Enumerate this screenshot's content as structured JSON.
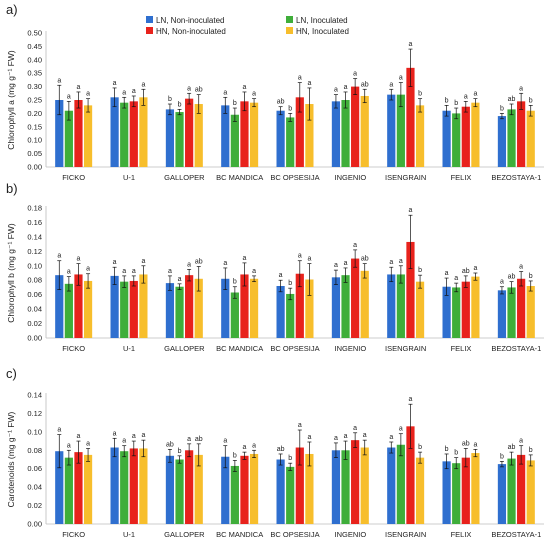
{
  "legend": [
    {
      "name": "LN, Non-inoculated",
      "color": "#2f6fcf"
    },
    {
      "name": "LN, Inoculated",
      "color": "#3fae3a"
    },
    {
      "name": "HN, Non-inoculated",
      "color": "#e8221c"
    },
    {
      "name": "HN, Inoculated",
      "color": "#f7be2c"
    }
  ],
  "chart_data": [
    {
      "type": "bar",
      "panel_label": "a)",
      "ylabel": "Chlorophyll a (mg g⁻¹ FW)",
      "ylim": [
        0,
        0.5
      ],
      "yticks": [
        "0.00",
        "0.05",
        "0.10",
        "0.15",
        "0.20",
        "0.25",
        "0.30",
        "0.35",
        "0.40",
        "0.45",
        "0.50"
      ],
      "ytick_values": [
        0,
        0.05,
        0.1,
        0.15,
        0.2,
        0.25,
        0.3,
        0.35,
        0.4,
        0.45,
        0.5
      ],
      "categories": [
        "FICKO",
        "U-1",
        "GALLOPER",
        "BC MANDICA",
        "BC OPSESIJA",
        "INGENIO",
        "ISENGRAIN",
        "FELIX",
        "BEZOSTAYA-1"
      ],
      "series": [
        {
          "name": "LN, Non-inoculated",
          "values": [
            0.25,
            0.26,
            0.215,
            0.23,
            0.21,
            0.245,
            0.27,
            0.21,
            0.19
          ],
          "errors": [
            0.055,
            0.035,
            0.02,
            0.03,
            0.015,
            0.025,
            0.02,
            0.02,
            0.01
          ],
          "labels": [
            "a",
            "a",
            "b",
            "a",
            "ab",
            "a",
            "a",
            "b",
            "b"
          ]
        },
        {
          "name": "LN, Inoculated",
          "values": [
            0.21,
            0.24,
            0.205,
            0.195,
            0.185,
            0.25,
            0.27,
            0.2,
            0.215
          ],
          "errors": [
            0.035,
            0.02,
            0.01,
            0.025,
            0.015,
            0.03,
            0.045,
            0.02,
            0.02
          ],
          "labels": [
            "a",
            "a",
            "b",
            "b",
            "b",
            "a",
            "a",
            "b",
            "ab"
          ]
        },
        {
          "name": "HN, Non-inoculated",
          "values": [
            0.25,
            0.245,
            0.255,
            0.245,
            0.26,
            0.3,
            0.37,
            0.225,
            0.245
          ],
          "errors": [
            0.03,
            0.02,
            0.02,
            0.035,
            0.055,
            0.03,
            0.07,
            0.02,
            0.03
          ],
          "labels": [
            "a",
            "a",
            "a",
            "a",
            "a",
            "a",
            "a",
            "a",
            "a"
          ]
        },
        {
          "name": "HN, Inoculated",
          "values": [
            0.23,
            0.26,
            0.235,
            0.24,
            0.235,
            0.265,
            0.23,
            0.24,
            0.21
          ],
          "errors": [
            0.025,
            0.03,
            0.035,
            0.015,
            0.06,
            0.025,
            0.025,
            0.015,
            0.02
          ],
          "labels": [
            "a",
            "a",
            "ab",
            "a",
            "a",
            "ab",
            "b",
            "a",
            "b"
          ]
        }
      ]
    },
    {
      "type": "bar",
      "panel_label": "b)",
      "ylabel": "Chlorophyll b (mg g⁻¹ FW)",
      "ylim": [
        0,
        0.18
      ],
      "yticks": [
        "0.00",
        "0.02",
        "0.04",
        "0.06",
        "0.08",
        "0.10",
        "0.12",
        "0.14",
        "0.16",
        "0.18"
      ],
      "ytick_values": [
        0,
        0.02,
        0.04,
        0.06,
        0.08,
        0.1,
        0.12,
        0.14,
        0.16,
        0.18
      ],
      "categories": [
        "FICKO",
        "U-1",
        "GALLOPER",
        "BC MANDICA",
        "BC OPSESIJA",
        "INGENIO",
        "ISENGRAIN",
        "FELIX",
        "BEZOSTAYA-1"
      ],
      "series": [
        {
          "name": "LN, Non-inoculated",
          "values": [
            0.087,
            0.086,
            0.076,
            0.082,
            0.072,
            0.084,
            0.088,
            0.071,
            0.066
          ],
          "errors": [
            0.02,
            0.012,
            0.01,
            0.015,
            0.008,
            0.01,
            0.01,
            0.012,
            0.005
          ],
          "labels": [
            "a",
            "a",
            "a",
            "a",
            "a",
            "a",
            "a",
            "a",
            "a"
          ]
        },
        {
          "name": "LN, Inoculated",
          "values": [
            0.075,
            0.078,
            0.071,
            0.063,
            0.061,
            0.087,
            0.088,
            0.07,
            0.07
          ],
          "errors": [
            0.01,
            0.008,
            0.004,
            0.008,
            0.008,
            0.01,
            0.012,
            0.006,
            0.008
          ],
          "labels": [
            "a",
            "a",
            "a",
            "b",
            "b",
            "a",
            "a",
            "a",
            "ab"
          ]
        },
        {
          "name": "HN, Non-inoculated",
          "values": [
            0.088,
            0.079,
            0.087,
            0.088,
            0.089,
            0.11,
            0.133,
            0.078,
            0.082
          ],
          "errors": [
            0.015,
            0.007,
            0.008,
            0.016,
            0.018,
            0.012,
            0.037,
            0.008,
            0.01
          ],
          "labels": [
            "a",
            "a",
            "a",
            "a",
            "a",
            "a",
            "a",
            "ab",
            "a"
          ]
        },
        {
          "name": "HN, Inoculated",
          "values": [
            0.079,
            0.088,
            0.082,
            0.082,
            0.081,
            0.093,
            0.078,
            0.085,
            0.072
          ],
          "errors": [
            0.01,
            0.012,
            0.017,
            0.004,
            0.022,
            0.01,
            0.009,
            0.005,
            0.007
          ],
          "labels": [
            "a",
            "a",
            "ab",
            "a",
            "a",
            "ab",
            "b",
            "a",
            "b"
          ]
        }
      ]
    },
    {
      "type": "bar",
      "panel_label": "c)",
      "ylabel": "Carotenoids (mg g⁻¹ FW)",
      "ylim": [
        0,
        0.14
      ],
      "yticks": [
        "0.00",
        "0.02",
        "0.04",
        "0.06",
        "0.08",
        "0.10",
        "0.12",
        "0.14"
      ],
      "ytick_values": [
        0,
        0.02,
        0.04,
        0.06,
        0.08,
        0.1,
        0.12,
        0.14
      ],
      "categories": [
        "FICKO",
        "U-1",
        "GALLOPER",
        "BC MANDICA",
        "BC OPSESIJA",
        "INGENIO",
        "ISENGRAIN",
        "FELIX",
        "BEZOSTAYA-1"
      ],
      "series": [
        {
          "name": "LN, Non-inoculated",
          "values": [
            0.079,
            0.083,
            0.074,
            0.073,
            0.07,
            0.08,
            0.083,
            0.068,
            0.065
          ],
          "errors": [
            0.018,
            0.01,
            0.007,
            0.012,
            0.006,
            0.008,
            0.006,
            0.008,
            0.003
          ],
          "labels": [
            "a",
            "a",
            "ab",
            "a",
            "ab",
            "a",
            "a",
            "b",
            "b"
          ]
        },
        {
          "name": "LN, Inoculated",
          "values": [
            0.072,
            0.079,
            0.07,
            0.063,
            0.062,
            0.08,
            0.086,
            0.066,
            0.071
          ],
          "errors": [
            0.008,
            0.006,
            0.004,
            0.006,
            0.004,
            0.01,
            0.012,
            0.006,
            0.007
          ],
          "labels": [
            "a",
            "a",
            "b",
            "b",
            "b",
            "a",
            "a",
            "b",
            "ab"
          ]
        },
        {
          "name": "HN, Non-inoculated",
          "values": [
            0.078,
            0.082,
            0.08,
            0.074,
            0.083,
            0.091,
            0.106,
            0.072,
            0.075
          ],
          "errors": [
            0.012,
            0.008,
            0.007,
            0.004,
            0.019,
            0.008,
            0.024,
            0.01,
            0.01
          ],
          "labels": [
            "a",
            "a",
            "a",
            "a",
            "a",
            "a",
            "a",
            "ab",
            "a"
          ]
        },
        {
          "name": "HN, Inoculated",
          "values": [
            0.075,
            0.082,
            0.075,
            0.076,
            0.076,
            0.083,
            0.072,
            0.077,
            0.069
          ],
          "errors": [
            0.007,
            0.009,
            0.012,
            0.004,
            0.013,
            0.008,
            0.006,
            0.004,
            0.006
          ],
          "labels": [
            "a",
            "a",
            "ab",
            "a",
            "a",
            "a",
            "b",
            "a",
            "b"
          ]
        }
      ]
    }
  ]
}
